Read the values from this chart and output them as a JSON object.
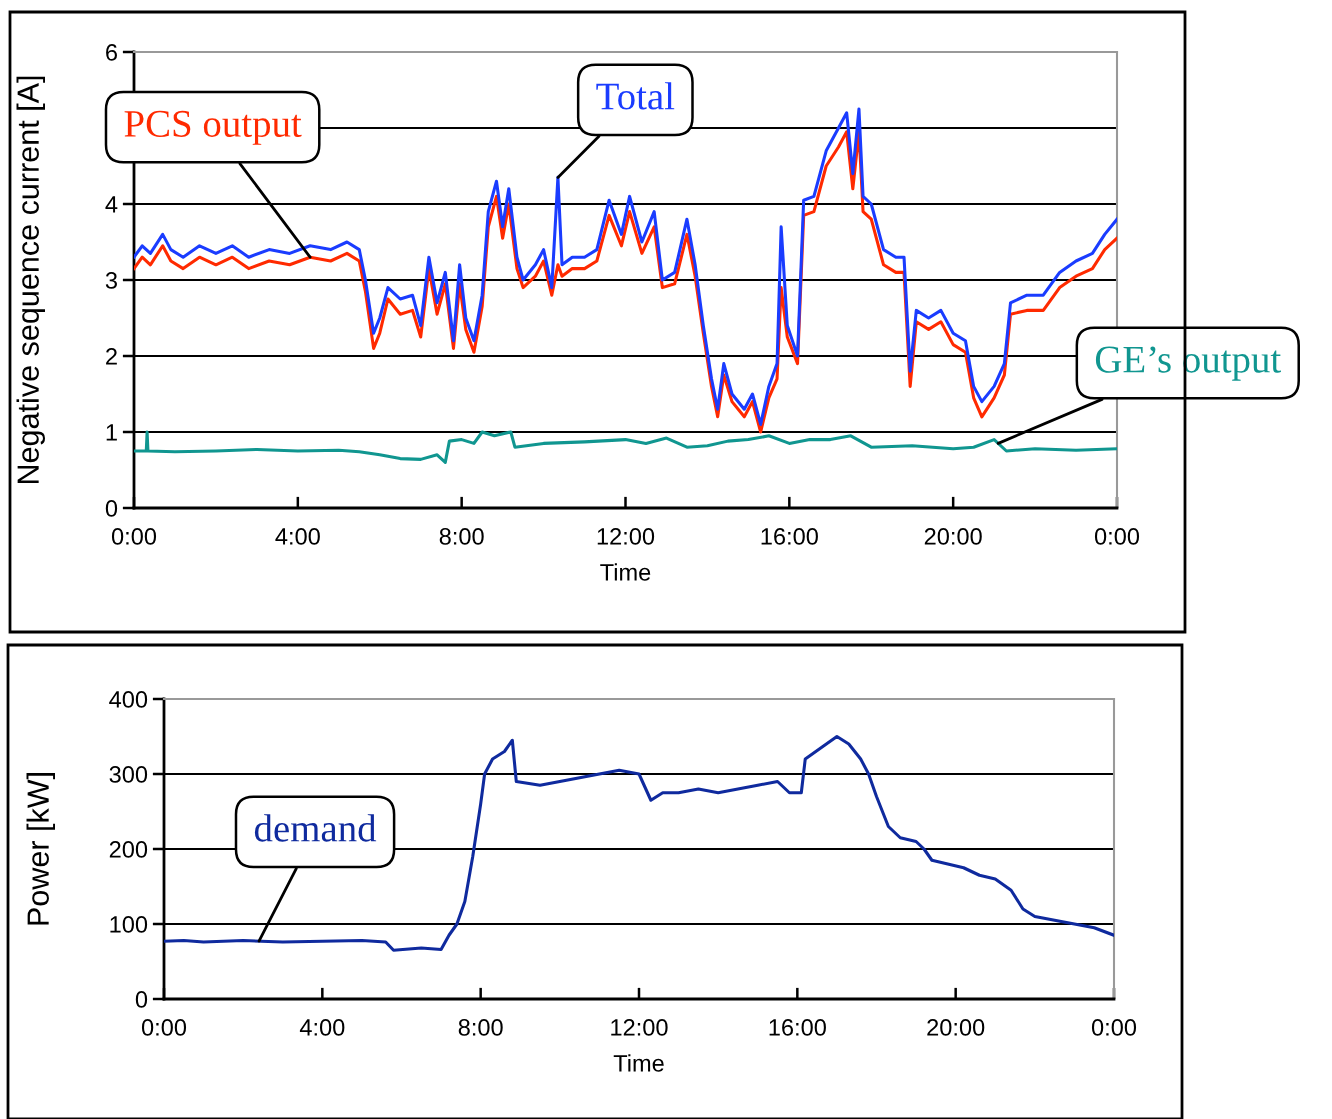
{
  "chart_data": [
    {
      "type": "line",
      "xlabel": "Time",
      "ylabel": "Negative sequence current [A]",
      "xlim": [
        0,
        24
      ],
      "ylim": [
        0,
        6
      ],
      "yticks": [
        0,
        1,
        2,
        3,
        4,
        {
          "value": 5,
          "label": null
        },
        6
      ],
      "xticks": [
        {
          "value": 0,
          "label": "0:00"
        },
        {
          "value": 4,
          "label": "4:00"
        },
        {
          "value": 8,
          "label": "8:00"
        },
        {
          "value": 12,
          "label": "12:00"
        },
        {
          "value": 16,
          "label": "16:00"
        },
        {
          "value": 20,
          "label": "20:00"
        },
        {
          "value": 24,
          "label": "0:00"
        }
      ],
      "grid": "y",
      "legend": false,
      "marker": "none",
      "line_style": "solid",
      "series": [
        {
          "name": "PCS output",
          "color": "#ff2a00",
          "x": [
            0,
            0.2,
            0.4,
            0.7,
            0.9,
            1.2,
            1.6,
            2,
            2.4,
            2.8,
            3.3,
            3.8,
            4.3,
            4.8,
            5.2,
            5.5,
            5.65,
            5.85,
            6.0,
            6.2,
            6.5,
            6.8,
            7.0,
            7.2,
            7.4,
            7.6,
            7.8,
            7.95,
            8.1,
            8.3,
            8.5,
            8.65,
            8.85,
            9.0,
            9.15,
            9.35,
            9.5,
            9.8,
            10.0,
            10.2,
            10.35,
            10.45,
            10.7,
            11.0,
            11.3,
            11.6,
            11.9,
            12.1,
            12.4,
            12.7,
            12.9,
            13.2,
            13.5,
            13.7,
            13.9,
            14.1,
            14.25,
            14.4,
            14.6,
            14.9,
            15.1,
            15.3,
            15.5,
            15.7,
            15.8,
            15.95,
            16.2,
            16.35,
            16.6,
            16.9,
            17.2,
            17.4,
            17.55,
            17.7,
            17.8,
            18.0,
            18.3,
            18.6,
            18.8,
            18.95,
            19.1,
            19.4,
            19.7,
            20.0,
            20.3,
            20.5,
            20.7,
            21.0,
            21.25,
            21.4,
            21.8,
            22.2,
            22.6,
            23.0,
            23.4,
            23.7,
            24
          ],
          "values": [
            3.15,
            3.3,
            3.2,
            3.45,
            3.25,
            3.15,
            3.3,
            3.2,
            3.3,
            3.15,
            3.25,
            3.2,
            3.3,
            3.25,
            3.35,
            3.25,
            2.85,
            2.1,
            2.3,
            2.75,
            2.55,
            2.6,
            2.25,
            3.15,
            2.55,
            2.95,
            2.1,
            2.95,
            2.35,
            2.05,
            2.65,
            3.7,
            4.1,
            3.55,
            4.0,
            3.15,
            2.9,
            3.05,
            3.25,
            2.8,
            3.2,
            3.05,
            3.15,
            3.15,
            3.25,
            3.85,
            3.45,
            3.9,
            3.35,
            3.7,
            2.9,
            2.95,
            3.6,
            3.05,
            2.3,
            1.6,
            1.2,
            1.75,
            1.4,
            1.2,
            1.4,
            1.0,
            1.45,
            1.7,
            2.9,
            2.25,
            1.9,
            3.85,
            3.9,
            4.5,
            4.75,
            4.95,
            4.2,
            4.95,
            3.9,
            3.8,
            3.2,
            3.1,
            3.1,
            1.6,
            2.45,
            2.35,
            2.45,
            2.15,
            2.05,
            1.45,
            1.2,
            1.45,
            1.75,
            2.55,
            2.6,
            2.6,
            2.9,
            3.05,
            3.15,
            3.4,
            3.55
          ]
        },
        {
          "name": "Total",
          "color": "#1a3cff",
          "x": [
            0,
            0.2,
            0.4,
            0.7,
            0.9,
            1.2,
            1.6,
            2,
            2.4,
            2.8,
            3.3,
            3.8,
            4.3,
            4.8,
            5.2,
            5.5,
            5.65,
            5.85,
            6.0,
            6.2,
            6.5,
            6.8,
            7.0,
            7.2,
            7.4,
            7.6,
            7.8,
            7.95,
            8.1,
            8.3,
            8.5,
            8.65,
            8.85,
            9.0,
            9.15,
            9.35,
            9.5,
            9.8,
            10.0,
            10.2,
            10.35,
            10.45,
            10.7,
            11.0,
            11.3,
            11.6,
            11.9,
            12.1,
            12.4,
            12.7,
            12.9,
            13.2,
            13.5,
            13.7,
            13.9,
            14.1,
            14.25,
            14.4,
            14.6,
            14.9,
            15.1,
            15.3,
            15.5,
            15.7,
            15.8,
            15.95,
            16.2,
            16.35,
            16.6,
            16.9,
            17.2,
            17.4,
            17.55,
            17.7,
            17.8,
            18.0,
            18.3,
            18.6,
            18.8,
            18.95,
            19.1,
            19.4,
            19.7,
            20.0,
            20.3,
            20.5,
            20.7,
            21.0,
            21.25,
            21.4,
            21.8,
            22.2,
            22.6,
            23.0,
            23.4,
            23.7,
            24
          ],
          "values": [
            3.3,
            3.45,
            3.35,
            3.6,
            3.4,
            3.3,
            3.45,
            3.35,
            3.45,
            3.3,
            3.4,
            3.35,
            3.45,
            3.4,
            3.5,
            3.4,
            3.0,
            2.3,
            2.5,
            2.9,
            2.75,
            2.8,
            2.4,
            3.3,
            2.7,
            3.1,
            2.2,
            3.2,
            2.5,
            2.2,
            2.8,
            3.9,
            4.3,
            3.7,
            4.2,
            3.3,
            3.0,
            3.2,
            3.4,
            2.9,
            4.35,
            3.2,
            3.3,
            3.3,
            3.4,
            4.05,
            3.6,
            4.1,
            3.5,
            3.9,
            3.0,
            3.1,
            3.8,
            3.2,
            2.4,
            1.7,
            1.3,
            1.9,
            1.5,
            1.3,
            1.5,
            1.1,
            1.6,
            1.9,
            3.7,
            2.4,
            2.0,
            4.05,
            4.1,
            4.7,
            5.0,
            5.2,
            4.4,
            5.25,
            4.1,
            4.0,
            3.4,
            3.3,
            3.3,
            1.8,
            2.6,
            2.5,
            2.6,
            2.3,
            2.2,
            1.6,
            1.4,
            1.6,
            1.9,
            2.7,
            2.8,
            2.8,
            3.1,
            3.25,
            3.35,
            3.6,
            3.8
          ]
        },
        {
          "name": "GE’s output",
          "color": "#109690",
          "x": [
            0,
            0.3,
            0.32,
            0.34,
            1,
            2,
            3,
            4,
            5,
            5.5,
            6,
            6.5,
            7,
            7.4,
            7.6,
            7.7,
            8,
            8.3,
            8.5,
            8.8,
            9.2,
            9.3,
            10,
            11,
            12,
            12.5,
            13,
            13.5,
            14,
            14.5,
            15,
            15.5,
            16,
            16.5,
            17,
            17.5,
            18,
            19,
            20,
            20.5,
            21,
            21.3,
            22,
            23,
            24
          ],
          "values": [
            0.75,
            0.75,
            1.0,
            0.75,
            0.74,
            0.75,
            0.77,
            0.75,
            0.76,
            0.74,
            0.7,
            0.65,
            0.64,
            0.7,
            0.6,
            0.88,
            0.9,
            0.85,
            1.0,
            0.95,
            1.0,
            0.8,
            0.85,
            0.87,
            0.9,
            0.85,
            0.92,
            0.8,
            0.82,
            0.88,
            0.9,
            0.95,
            0.85,
            0.9,
            0.9,
            0.95,
            0.8,
            0.82,
            0.78,
            0.8,
            0.9,
            0.75,
            0.78,
            0.76,
            0.78
          ]
        }
      ]
    },
    {
      "type": "line",
      "xlabel": "Time",
      "ylabel": "Power [kW]",
      "xlim": [
        0,
        24
      ],
      "ylim": [
        0,
        400
      ],
      "yticks": [
        0,
        100,
        200,
        300,
        400
      ],
      "xticks": [
        {
          "value": 0,
          "label": "0:00"
        },
        {
          "value": 4,
          "label": "4:00"
        },
        {
          "value": 8,
          "label": "8:00"
        },
        {
          "value": 12,
          "label": "12:00"
        },
        {
          "value": 16,
          "label": "16:00"
        },
        {
          "value": 20,
          "label": "20:00"
        },
        {
          "value": 24,
          "label": "0:00"
        }
      ],
      "grid": "y",
      "legend": false,
      "marker": "none",
      "line_style": "solid",
      "series": [
        {
          "name": "demand",
          "color": "#0f2a9e",
          "x": [
            0,
            0.5,
            1,
            2,
            3,
            4,
            5,
            5.6,
            5.8,
            6.5,
            7.0,
            7.2,
            7.4,
            7.6,
            7.8,
            8.0,
            8.1,
            8.3,
            8.6,
            8.8,
            8.9,
            9.5,
            10,
            10.5,
            11,
            11.5,
            12,
            12.3,
            12.6,
            13,
            13.5,
            14,
            14.5,
            15,
            15.5,
            15.8,
            16.1,
            16.2,
            16.6,
            17.0,
            17.3,
            17.6,
            17.8,
            18.0,
            18.3,
            18.6,
            19.0,
            19.2,
            19.4,
            19.8,
            20.2,
            20.6,
            21.0,
            21.4,
            21.7,
            22,
            22.5,
            23,
            23.5,
            24
          ],
          "values": [
            77,
            78,
            76,
            78,
            76,
            77,
            78,
            76,
            65,
            68,
            66,
            85,
            100,
            130,
            190,
            260,
            300,
            320,
            330,
            345,
            290,
            285,
            290,
            295,
            300,
            305,
            300,
            265,
            275,
            275,
            280,
            275,
            280,
            285,
            290,
            275,
            275,
            320,
            335,
            350,
            340,
            320,
            300,
            270,
            230,
            215,
            210,
            200,
            185,
            180,
            175,
            165,
            160,
            145,
            120,
            110,
            105,
            100,
            95,
            85
          ]
        }
      ]
    }
  ]
}
